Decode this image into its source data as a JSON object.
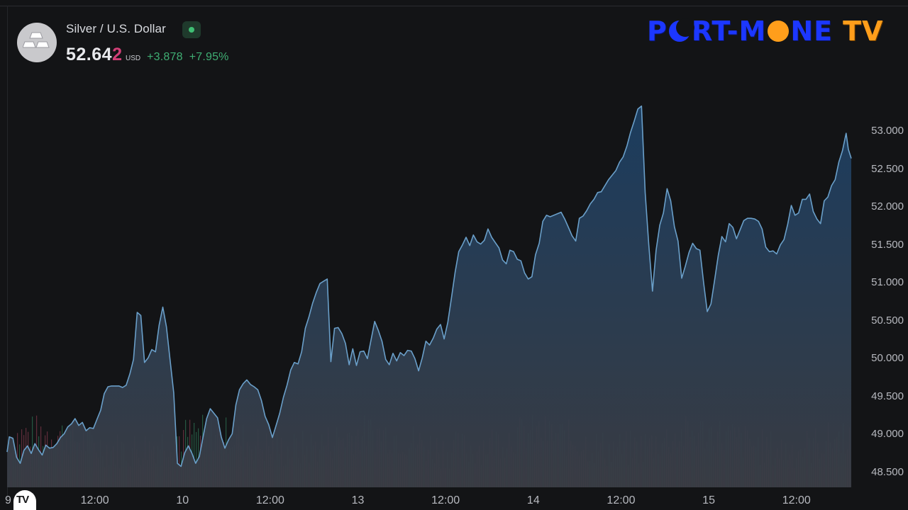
{
  "header": {
    "symbol_name": "Silver / U.S. Dollar",
    "price_main": "52.64",
    "price_last_digit": "2",
    "currency": "USD",
    "change": "+3.878",
    "change_percent": "+7.95%",
    "market_status": "open",
    "status_color": "#3fbf74",
    "avatar_icon": "silver-bars-icon"
  },
  "brand": {
    "part1": "P",
    "part2": "RT-M",
    "part3": "NE",
    "part4": "TV",
    "color_primary": "#1c37ff",
    "color_secondary": "#ff9e1b"
  },
  "chart_badge": "TV",
  "chart_data": {
    "type": "area",
    "title": "",
    "xlabel": "",
    "ylabel": "",
    "currency": "USD",
    "ylim": [
      48.3,
      53.7
    ],
    "y_ticks": [
      "48.500",
      "49.000",
      "49.500",
      "50.000",
      "50.500",
      "51.000",
      "51.500",
      "52.000",
      "52.500",
      "53.000"
    ],
    "y_tick_values": [
      48.5,
      49.0,
      49.5,
      50.0,
      50.5,
      51.0,
      51.5,
      52.0,
      52.5,
      53.0
    ],
    "x_ticks": [
      "9",
      "12:00",
      "10",
      "12:00",
      "13",
      "12:00",
      "14",
      "12:00",
      "15",
      "12:00"
    ],
    "x_tick_hours": [
      0,
      12,
      24,
      36,
      48,
      60,
      72,
      84,
      96,
      108
    ],
    "x_range_hours": [
      0,
      115.5
    ],
    "line_color": "#6a9fc9",
    "area_top_color": "#1c3f62",
    "area_bottom_color": "#3a3d45",
    "volume_up_color": "#2e6e52",
    "volume_down_color": "#7a3548",
    "grid": false,
    "series": [
      {
        "values": [
          [
            0,
            48.77
          ],
          [
            0.3,
            48.97
          ],
          [
            0.8,
            48.95
          ],
          [
            1.3,
            48.7
          ],
          [
            1.8,
            48.62
          ],
          [
            2.3,
            48.79
          ],
          [
            2.8,
            48.85
          ],
          [
            3.3,
            48.75
          ],
          [
            3.8,
            48.88
          ],
          [
            4.3,
            48.8
          ],
          [
            4.8,
            48.73
          ],
          [
            5.3,
            48.86
          ],
          [
            5.8,
            48.82
          ],
          [
            6.3,
            48.83
          ],
          [
            6.8,
            48.88
          ],
          [
            7.3,
            48.96
          ],
          [
            7.8,
            49.01
          ],
          [
            8.3,
            49.1
          ],
          [
            8.8,
            49.14
          ],
          [
            9.3,
            49.21
          ],
          [
            9.8,
            49.12
          ],
          [
            10.3,
            49.16
          ],
          [
            10.8,
            49.05
          ],
          [
            11.3,
            49.09
          ],
          [
            11.8,
            49.08
          ],
          [
            12.3,
            49.2
          ],
          [
            12.8,
            49.32
          ],
          [
            13.3,
            49.54
          ],
          [
            13.8,
            49.63
          ],
          [
            14.3,
            49.64
          ],
          [
            14.8,
            49.64
          ],
          [
            15.3,
            49.64
          ],
          [
            15.8,
            49.62
          ],
          [
            16.3,
            49.65
          ],
          [
            16.8,
            49.8
          ],
          [
            17.3,
            49.99
          ],
          [
            17.8,
            50.61
          ],
          [
            18.3,
            50.57
          ],
          [
            18.8,
            49.95
          ],
          [
            19.3,
            50.01
          ],
          [
            19.8,
            50.12
          ],
          [
            20.3,
            50.09
          ],
          [
            20.8,
            50.44
          ],
          [
            21.3,
            50.68
          ],
          [
            21.8,
            50.42
          ],
          [
            22.3,
            49.98
          ],
          [
            22.8,
            49.55
          ],
          [
            23.3,
            48.62
          ],
          [
            23.8,
            48.58
          ],
          [
            24.3,
            48.76
          ],
          [
            24.8,
            48.85
          ],
          [
            25.3,
            48.75
          ],
          [
            25.8,
            48.62
          ],
          [
            26.3,
            48.71
          ],
          [
            26.8,
            48.96
          ],
          [
            27.3,
            49.21
          ],
          [
            27.8,
            49.34
          ],
          [
            28.3,
            49.28
          ],
          [
            28.8,
            49.22
          ],
          [
            29.3,
            48.97
          ],
          [
            29.8,
            48.82
          ],
          [
            30.3,
            48.93
          ],
          [
            30.8,
            49.01
          ],
          [
            31.3,
            49.39
          ],
          [
            31.8,
            49.59
          ],
          [
            32.3,
            49.67
          ],
          [
            32.8,
            49.72
          ],
          [
            33.3,
            49.66
          ],
          [
            33.8,
            49.63
          ],
          [
            34.3,
            49.59
          ],
          [
            34.8,
            49.45
          ],
          [
            35.3,
            49.24
          ],
          [
            35.8,
            49.13
          ],
          [
            36.3,
            48.96
          ],
          [
            36.8,
            49.12
          ],
          [
            37.3,
            49.28
          ],
          [
            37.8,
            49.49
          ],
          [
            38.3,
            49.65
          ],
          [
            38.8,
            49.85
          ],
          [
            39.3,
            49.95
          ],
          [
            39.8,
            49.93
          ],
          [
            40.3,
            50.09
          ],
          [
            40.8,
            50.4
          ],
          [
            41.3,
            50.55
          ],
          [
            41.8,
            50.73
          ],
          [
            42.3,
            50.87
          ],
          [
            42.8,
            50.99
          ],
          [
            43.3,
            51.02
          ],
          [
            43.8,
            51.05
          ],
          [
            44.3,
            49.96
          ],
          [
            44.8,
            50.4
          ],
          [
            45.3,
            50.41
          ],
          [
            45.8,
            50.33
          ],
          [
            46.3,
            50.2
          ],
          [
            46.8,
            49.92
          ],
          [
            47.3,
            50.13
          ],
          [
            47.8,
            49.91
          ],
          [
            48.3,
            50.09
          ],
          [
            48.8,
            50.1
          ],
          [
            49.3,
            50.0
          ],
          [
            49.8,
            50.25
          ],
          [
            50.3,
            50.49
          ],
          [
            50.8,
            50.37
          ],
          [
            51.3,
            50.23
          ],
          [
            51.8,
            49.99
          ],
          [
            52.3,
            49.92
          ],
          [
            52.8,
            50.07
          ],
          [
            53.3,
            49.97
          ],
          [
            53.8,
            50.08
          ],
          [
            54.3,
            50.04
          ],
          [
            54.8,
            50.11
          ],
          [
            55.3,
            50.1
          ],
          [
            55.8,
            50.0
          ],
          [
            56.3,
            49.84
          ],
          [
            56.8,
            50.01
          ],
          [
            57.3,
            50.23
          ],
          [
            57.8,
            50.18
          ],
          [
            58.3,
            50.27
          ],
          [
            58.8,
            50.39
          ],
          [
            59.3,
            50.45
          ],
          [
            59.8,
            50.26
          ],
          [
            60.3,
            50.48
          ],
          [
            60.8,
            50.8
          ],
          [
            61.3,
            51.14
          ],
          [
            61.8,
            51.41
          ],
          [
            62.3,
            51.5
          ],
          [
            62.8,
            51.6
          ],
          [
            63.3,
            51.49
          ],
          [
            63.8,
            51.63
          ],
          [
            64.3,
            51.54
          ],
          [
            64.8,
            51.51
          ],
          [
            65.3,
            51.56
          ],
          [
            65.8,
            51.71
          ],
          [
            66.3,
            51.6
          ],
          [
            66.8,
            51.53
          ],
          [
            67.3,
            51.46
          ],
          [
            67.8,
            51.3
          ],
          [
            68.3,
            51.25
          ],
          [
            68.8,
            51.43
          ],
          [
            69.3,
            51.41
          ],
          [
            69.8,
            51.31
          ],
          [
            70.3,
            51.29
          ],
          [
            70.8,
            51.13
          ],
          [
            71.3,
            51.05
          ],
          [
            71.8,
            51.08
          ],
          [
            72.3,
            51.37
          ],
          [
            72.8,
            51.52
          ],
          [
            73.3,
            51.81
          ],
          [
            73.8,
            51.89
          ],
          [
            74.3,
            51.87
          ],
          [
            74.8,
            51.89
          ],
          [
            75.3,
            51.91
          ],
          [
            75.8,
            51.93
          ],
          [
            76.3,
            51.84
          ],
          [
            76.8,
            51.73
          ],
          [
            77.3,
            51.62
          ],
          [
            77.8,
            51.55
          ],
          [
            78.3,
            51.85
          ],
          [
            78.8,
            51.88
          ],
          [
            79.3,
            51.95
          ],
          [
            79.8,
            52.04
          ],
          [
            80.3,
            52.1
          ],
          [
            80.8,
            52.19
          ],
          [
            81.3,
            52.2
          ],
          [
            81.8,
            52.28
          ],
          [
            82.3,
            52.36
          ],
          [
            82.8,
            52.42
          ],
          [
            83.3,
            52.48
          ],
          [
            83.8,
            52.59
          ],
          [
            84.3,
            52.66
          ],
          [
            84.8,
            52.8
          ],
          [
            85.3,
            52.98
          ],
          [
            85.8,
            53.13
          ],
          [
            86.3,
            53.29
          ],
          [
            86.8,
            53.33
          ],
          [
            87.3,
            52.19
          ],
          [
            87.8,
            51.5
          ],
          [
            88.3,
            50.89
          ],
          [
            88.8,
            51.43
          ],
          [
            89.3,
            51.76
          ],
          [
            89.8,
            51.92
          ],
          [
            90.3,
            52.24
          ],
          [
            90.8,
            52.08
          ],
          [
            91.3,
            51.74
          ],
          [
            91.8,
            51.55
          ],
          [
            92.3,
            51.06
          ],
          [
            92.8,
            51.22
          ],
          [
            93.3,
            51.4
          ],
          [
            93.8,
            51.52
          ],
          [
            94.3,
            51.45
          ],
          [
            94.8,
            51.43
          ],
          [
            95.3,
            51.0
          ],
          [
            95.8,
            50.62
          ],
          [
            96.3,
            50.72
          ],
          [
            96.8,
            51.03
          ],
          [
            97.3,
            51.36
          ],
          [
            97.8,
            51.61
          ],
          [
            98.3,
            51.54
          ],
          [
            98.8,
            51.78
          ],
          [
            99.3,
            51.73
          ],
          [
            99.8,
            51.58
          ],
          [
            100.3,
            51.7
          ],
          [
            100.8,
            51.82
          ],
          [
            101.3,
            51.85
          ],
          [
            101.8,
            51.85
          ],
          [
            102.3,
            51.84
          ],
          [
            102.8,
            51.81
          ],
          [
            103.3,
            51.71
          ],
          [
            103.8,
            51.47
          ],
          [
            104.3,
            51.41
          ],
          [
            104.8,
            51.42
          ],
          [
            105.3,
            51.38
          ],
          [
            105.8,
            51.5
          ],
          [
            106.3,
            51.57
          ],
          [
            106.8,
            51.77
          ],
          [
            107.3,
            52.02
          ],
          [
            107.8,
            51.89
          ],
          [
            108.3,
            51.92
          ],
          [
            108.8,
            52.1
          ],
          [
            109.3,
            52.1
          ],
          [
            109.8,
            52.17
          ],
          [
            110.3,
            51.94
          ],
          [
            110.8,
            51.84
          ],
          [
            111.3,
            51.78
          ],
          [
            111.8,
            52.08
          ],
          [
            112.3,
            52.13
          ],
          [
            112.8,
            52.28
          ],
          [
            113.3,
            52.36
          ],
          [
            113.8,
            52.59
          ],
          [
            114.3,
            52.74
          ],
          [
            114.8,
            52.97
          ],
          [
            115.1,
            52.76
          ],
          [
            115.5,
            52.64
          ]
        ]
      }
    ]
  }
}
